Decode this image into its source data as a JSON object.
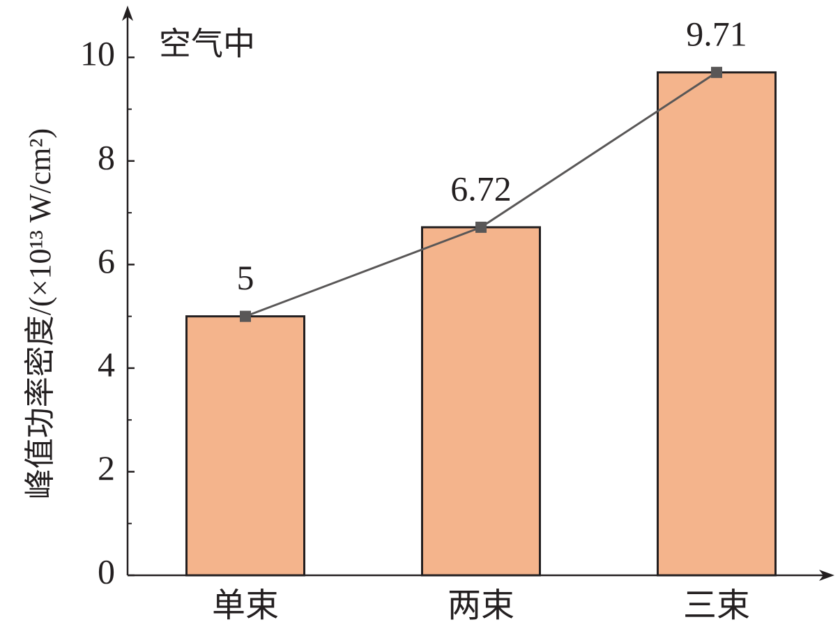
{
  "chart_data": {
    "type": "bar",
    "overlay": "line",
    "annotation": "空气中",
    "y_label": "峰值功率密度/(×10¹³ W/cm²)",
    "categories": [
      "单束",
      "两束",
      "三束"
    ],
    "values": [
      5,
      6.72,
      9.71
    ],
    "color": "#f4b48c",
    "line_color": "#595757",
    "ylim": [
      0,
      11
    ],
    "yticks": [
      0,
      2,
      4,
      6,
      8,
      10
    ],
    "yminor": [
      1,
      3,
      5,
      7,
      9
    ],
    "grid": false
  }
}
